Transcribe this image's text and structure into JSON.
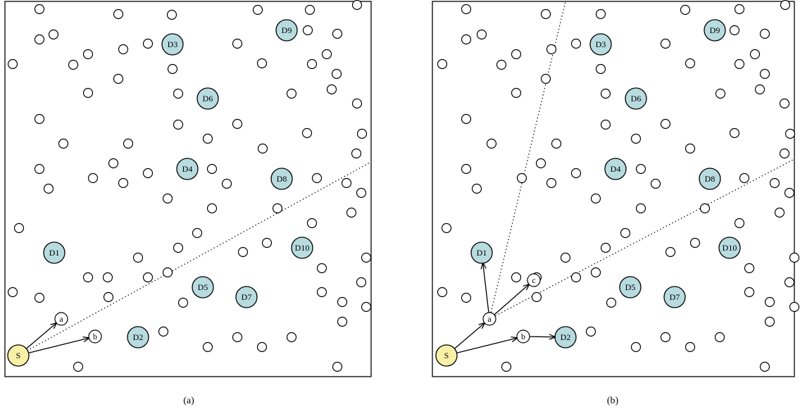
{
  "panels": [
    {
      "id": "a",
      "caption": "(a)",
      "source_label": "S",
      "relay_labels": [
        "a",
        "b"
      ],
      "destinations": [
        "D1",
        "D2",
        "D3",
        "D4",
        "D5",
        "D6",
        "D7",
        "D8",
        "D9",
        "D10"
      ]
    },
    {
      "id": "b",
      "caption": "(b)",
      "source_label": "S",
      "relay_labels": [
        "a",
        "b",
        "c"
      ],
      "destinations": [
        "D1",
        "D2",
        "D3",
        "D4",
        "D5",
        "D6",
        "D7",
        "D8",
        "D9",
        "D10"
      ]
    }
  ],
  "colors": {
    "destination_fill": "#b7dbdf",
    "source_fill": "#f8f0a6"
  }
}
